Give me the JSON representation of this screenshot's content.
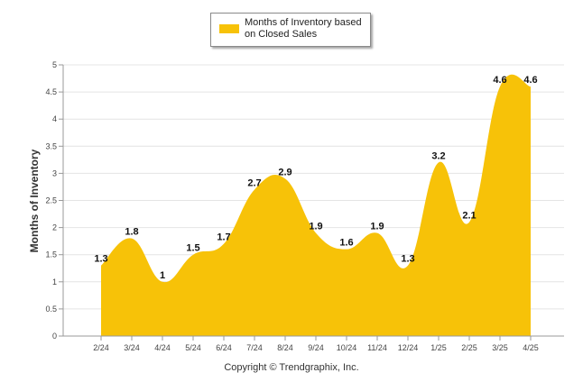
{
  "chart_data": {
    "type": "area",
    "categories": [
      "2/24",
      "3/24",
      "4/24",
      "5/24",
      "6/24",
      "7/24",
      "8/24",
      "9/24",
      "10/24",
      "11/24",
      "12/24",
      "1/25",
      "2/25",
      "3/25",
      "4/25"
    ],
    "series": [
      {
        "name": "Months of Inventory based on Closed Sales",
        "values": [
          1.3,
          1.8,
          1,
          1.5,
          1.7,
          2.7,
          2.9,
          1.9,
          1.6,
          1.9,
          1.3,
          3.2,
          2.1,
          4.6,
          4.6
        ],
        "color": "#F7C208"
      }
    ],
    "data_labels": [
      "1.3",
      "1.8",
      "1",
      "1.5",
      "1.7",
      "2.7",
      "2.9",
      "1.9",
      "1.6",
      "1.9",
      "1.3",
      "3.2",
      "2.1",
      "4.6",
      "4.6"
    ],
    "ylabel": "Months of Inventory",
    "xlabel": "",
    "ylim": [
      0,
      5
    ],
    "yticks": [
      "0",
      "0.5",
      "1",
      "1.5",
      "2",
      "2.5",
      "3",
      "3.5",
      "4",
      "4.5",
      "5"
    ],
    "grid": true,
    "legend_position": "top-center"
  },
  "legend": {
    "label": "Months of Inventory based on Closed Sales"
  },
  "footer": {
    "copyright": "Copyright © Trendgraphix, Inc."
  }
}
